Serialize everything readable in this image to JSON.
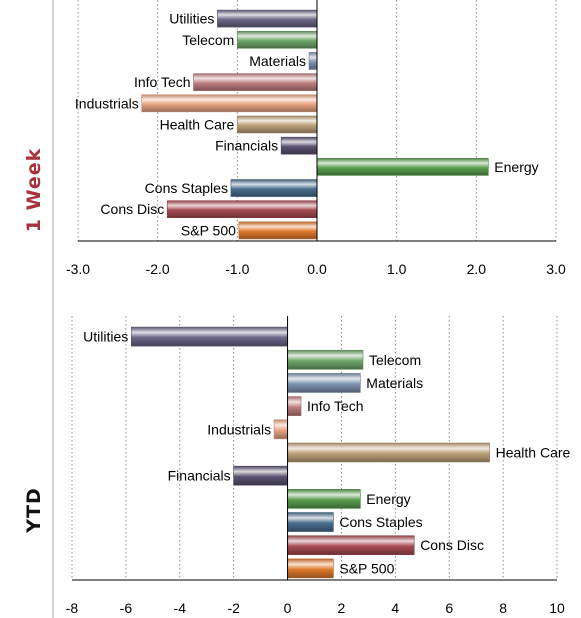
{
  "panels": {
    "week_label": "1 Week",
    "ytd_label": "YTD",
    "week_color": "#a7323c",
    "ytd_color": "#111111"
  },
  "chart_data": [
    {
      "type": "bar",
      "orientation": "horizontal",
      "panel": "1 Week",
      "categories": [
        "Utilities",
        "Telecom",
        "Materials",
        "Info Tech",
        "Industrials",
        "Health Care",
        "Financials",
        "Energy",
        "Cons Staples",
        "Cons Disc",
        "S&P 500"
      ],
      "values": [
        -1.25,
        -1.0,
        -0.1,
        -1.55,
        -2.2,
        -1.0,
        -0.45,
        2.15,
        -1.08,
        -1.88,
        -0.98
      ],
      "colors": [
        "#6c6688",
        "#70a66a",
        "#7e94b0",
        "#c07f80",
        "#e9a482",
        "#bda178",
        "#5a5272",
        "#5a9e4e",
        "#4a6e90",
        "#a94c54",
        "#e07a2e"
      ],
      "xticks": [
        "-3.0",
        "-2.0",
        "-1.0",
        "0.0",
        "1.0",
        "2.0",
        "3.0"
      ],
      "xlim": [
        -3,
        3
      ],
      "grid": true
    },
    {
      "type": "bar",
      "orientation": "horizontal",
      "panel": "YTD",
      "categories": [
        "Utilities",
        "Telecom",
        "Materials",
        "Info Tech",
        "Industrials",
        "Health Care",
        "Financials",
        "Energy",
        "Cons Staples",
        "Cons Disc",
        "S&P 500"
      ],
      "values": [
        -5.8,
        2.8,
        2.7,
        0.5,
        -0.5,
        7.5,
        -2.0,
        2.7,
        1.7,
        4.7,
        1.7
      ],
      "colors": [
        "#6c6688",
        "#70a66a",
        "#7e94b0",
        "#c07f80",
        "#e9a482",
        "#bda178",
        "#5a5272",
        "#5a9e4e",
        "#4a6e90",
        "#a94c54",
        "#e07a2e"
      ],
      "xticks": [
        "-8",
        "-6",
        "-4",
        "-2",
        "0",
        "2",
        "4",
        "6",
        "8",
        "10"
      ],
      "xlim": [
        -8,
        10
      ],
      "grid": true
    }
  ]
}
